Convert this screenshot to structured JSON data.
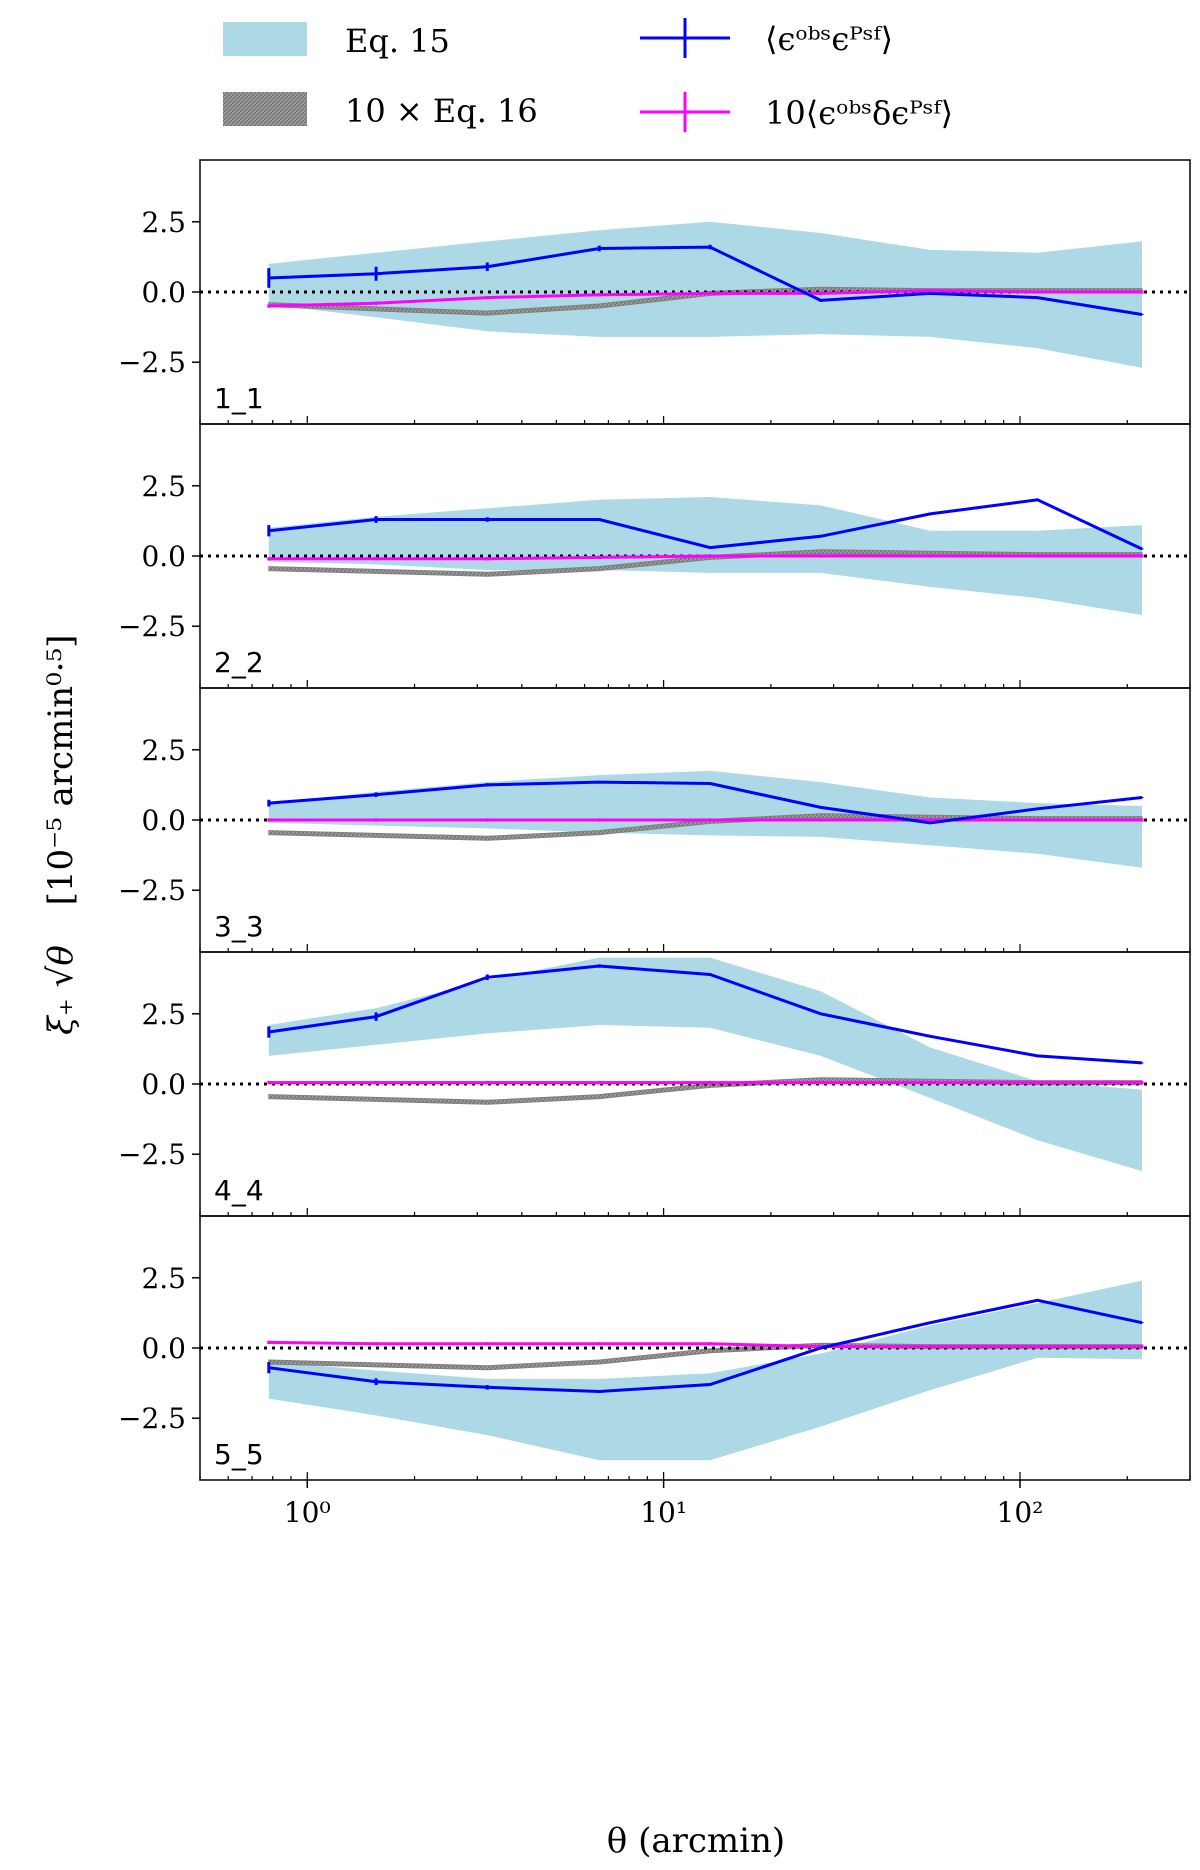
{
  "chart_data": {
    "type": "line",
    "xlabel": "θ (arcmin)",
    "ylabel_main": "ξ₊ √θ",
    "ylabel_units": "[10⁻⁵ arcmin⁰·⁵]",
    "x_scale": "log",
    "xlim": [
      0.5,
      300
    ],
    "ylim": [
      -4.7,
      4.7
    ],
    "x_ticks": [
      1,
      10,
      100
    ],
    "x_tick_labels": [
      "10⁰",
      "10¹",
      "10²"
    ],
    "y_ticks": [
      2.5,
      0.0,
      -2.5
    ],
    "y_tick_labels": [
      "2.5",
      "0.0",
      "−2.5"
    ],
    "legend": {
      "placement": "top",
      "entries": [
        {
          "label": "Eq. 15",
          "color": "#add8e6",
          "kind": "band"
        },
        {
          "label": "10 × Eq. 16",
          "color": "#808080",
          "kind": "band"
        },
        {
          "label": "⟨ϵᵒᵇˢϵᴾˢᶠ⟩",
          "color": "#0000ff",
          "kind": "errorline"
        },
        {
          "label": "10⟨ϵᵒᵇˢδϵᴾˢᶠ⟩",
          "color": "#ff00ff",
          "kind": "errorline"
        }
      ]
    },
    "x": [
      0.78,
      1.56,
      3.2,
      6.6,
      13.5,
      27.6,
      56,
      112,
      220
    ],
    "panels": [
      {
        "label": "1_1",
        "eps_psf": [
          0.5,
          0.65,
          0.9,
          1.55,
          1.6,
          -0.3,
          -0.05,
          -0.2,
          -0.8
        ],
        "eps_psf_err": [
          0.35,
          0.25,
          0.15,
          0.1,
          0.08,
          0.05,
          0.03,
          0.02,
          0.02
        ],
        "eps_dpsf_x10": [
          -0.5,
          -0.4,
          -0.2,
          -0.1,
          -0.05,
          -0.05,
          0.05,
          0.0,
          0.0
        ],
        "eq15_lower": [
          -0.45,
          -0.9,
          -1.4,
          -1.6,
          -1.6,
          -1.5,
          -1.6,
          -2.0,
          -2.7
        ],
        "eq15_upper": [
          1.0,
          1.4,
          1.8,
          2.2,
          2.5,
          2.1,
          1.5,
          1.4,
          1.8
        ],
        "eq16_x10": [
          -0.45,
          -0.6,
          -0.75,
          -0.5,
          -0.05,
          0.1,
          0.05,
          0.05,
          0.05
        ]
      },
      {
        "label": "2_2",
        "eps_psf": [
          0.9,
          1.3,
          1.3,
          1.3,
          0.3,
          0.7,
          1.5,
          2.0,
          0.25
        ],
        "eps_psf_err": [
          0.2,
          0.12,
          0.08,
          0.05,
          0.04,
          0.03,
          0.02,
          0.02,
          0.02
        ],
        "eps_dpsf_x10": [
          -0.1,
          -0.1,
          -0.1,
          -0.05,
          0.0,
          0.0,
          0.0,
          0.0,
          0.0
        ],
        "eq15_lower": [
          -0.2,
          -0.3,
          -0.5,
          -0.5,
          -0.6,
          -0.6,
          -1.1,
          -1.5,
          -2.1
        ],
        "eq15_upper": [
          1.0,
          1.4,
          1.7,
          2.0,
          2.1,
          1.8,
          0.9,
          0.9,
          1.1
        ],
        "eq16_x10": [
          -0.45,
          -0.55,
          -0.65,
          -0.45,
          -0.05,
          0.15,
          0.1,
          0.05,
          0.05
        ]
      },
      {
        "label": "3_3",
        "eps_psf": [
          0.6,
          0.9,
          1.25,
          1.35,
          1.3,
          0.45,
          -0.1,
          0.4,
          0.8
        ],
        "eps_psf_err": [
          0.12,
          0.08,
          0.06,
          0.04,
          0.03,
          0.02,
          0.02,
          0.02,
          0.02
        ],
        "eps_dpsf_x10": [
          0.0,
          0.0,
          0.0,
          0.0,
          0.0,
          0.0,
          0.0,
          0.0,
          0.0
        ],
        "eq15_lower": [
          -0.1,
          -0.2,
          -0.3,
          -0.45,
          -0.55,
          -0.6,
          -0.9,
          -1.2,
          -1.7
        ],
        "eq15_upper": [
          0.6,
          1.0,
          1.35,
          1.6,
          1.75,
          1.35,
          0.8,
          0.6,
          0.5
        ],
        "eq16_x10": [
          -0.45,
          -0.55,
          -0.65,
          -0.45,
          -0.05,
          0.15,
          0.1,
          0.05,
          0.05
        ]
      },
      {
        "label": "4_4",
        "eps_psf": [
          1.85,
          2.4,
          3.8,
          4.2,
          3.9,
          2.5,
          1.7,
          1.0,
          0.75
        ],
        "eps_psf_err": [
          0.2,
          0.15,
          0.1,
          0.06,
          0.04,
          0.03,
          0.02,
          0.02,
          0.02
        ],
        "eps_dpsf_x10": [
          0.05,
          0.05,
          0.05,
          0.05,
          0.05,
          0.05,
          0.05,
          0.05,
          0.05
        ],
        "eq15_lower": [
          1.0,
          1.4,
          1.8,
          2.1,
          2.0,
          1.0,
          -0.5,
          -2.0,
          -3.1
        ],
        "eq15_upper": [
          2.1,
          2.7,
          3.7,
          4.5,
          4.5,
          3.3,
          1.3,
          0.1,
          -0.2
        ],
        "eq16_x10": [
          -0.45,
          -0.55,
          -0.65,
          -0.45,
          -0.05,
          0.15,
          0.1,
          0.05,
          0.05
        ]
      },
      {
        "label": "5_5",
        "eps_psf": [
          -0.7,
          -1.2,
          -1.4,
          -1.55,
          -1.3,
          0.0,
          0.9,
          1.7,
          0.9
        ],
        "eps_psf_err": [
          0.2,
          0.12,
          0.08,
          0.05,
          0.04,
          0.03,
          0.02,
          0.02,
          0.02
        ],
        "eps_dpsf_x10": [
          0.2,
          0.15,
          0.15,
          0.15,
          0.15,
          0.05,
          0.05,
          0.05,
          0.05
        ],
        "eq15_lower": [
          -1.8,
          -2.4,
          -3.1,
          -4.0,
          -4.0,
          -2.8,
          -1.5,
          -0.35,
          -0.4
        ],
        "eq15_upper": [
          -0.5,
          -0.8,
          -1.1,
          -1.1,
          -0.9,
          -0.2,
          0.8,
          1.6,
          2.4
        ],
        "eq16_x10": [
          -0.5,
          -0.6,
          -0.7,
          -0.5,
          -0.1,
          0.1,
          0.05,
          0.05,
          0.05
        ]
      }
    ]
  }
}
